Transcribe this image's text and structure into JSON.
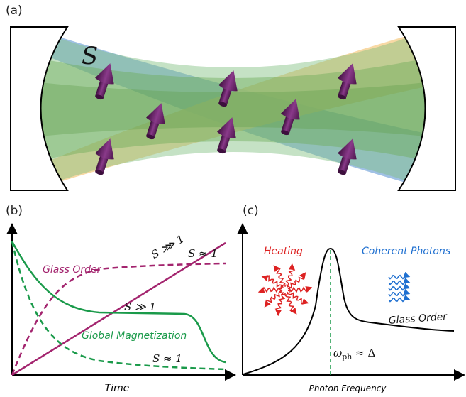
{
  "panel_a": {
    "label": "(a)",
    "spin_label": "S"
  },
  "panel_b": {
    "label": "(b)",
    "glass_order": "Glass Order",
    "s_much_much": "S ⋙ 1",
    "s_approx_top": "S ≈ 1",
    "s_much": "S ≫ 1",
    "global_magnetization": "Global Magnetization",
    "s_approx_bottom": "S ≈ 1",
    "x_label": "Time"
  },
  "panel_c": {
    "label": "(c)",
    "heating": "Heating",
    "coherent_photons": "Coherent Photons",
    "glass_order": "Glass Order",
    "resonance": {
      "symbol": "ω",
      "subscript": "ph",
      "relation": " ≈ Δ"
    },
    "x_label": "Photon Frequency"
  }
}
